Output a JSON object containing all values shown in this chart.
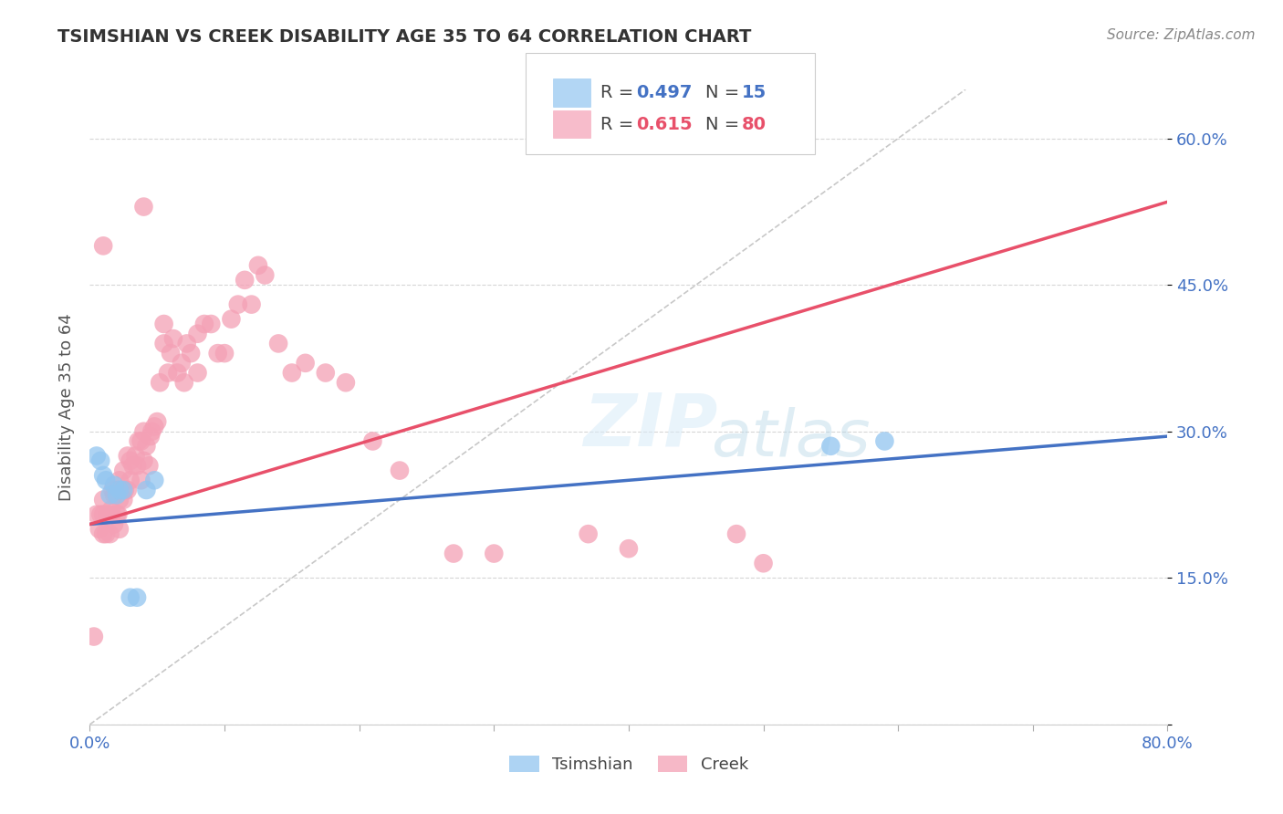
{
  "title": "TSIMSHIAN VS CREEK DISABILITY AGE 35 TO 64 CORRELATION CHART",
  "source": "Source: ZipAtlas.com",
  "ylabel": "Disability Age 35 to 64",
  "x_min": 0.0,
  "x_max": 0.8,
  "y_min": 0.0,
  "y_max": 0.65,
  "y_ticks": [
    0.0,
    0.15,
    0.3,
    0.45,
    0.6
  ],
  "y_tick_labels": [
    "",
    "15.0%",
    "30.0%",
    "45.0%",
    "60.0%"
  ],
  "legend_labels": [
    "Tsimshian",
    "Creek"
  ],
  "tsimshian_R": 0.497,
  "tsimshian_N": 15,
  "creek_R": 0.615,
  "creek_N": 80,
  "tsimshian_color": "#92C5F0",
  "creek_color": "#F4A0B5",
  "tsimshian_line_color": "#4472C4",
  "creek_line_color": "#E8506A",
  "diagonal_color": "#C8C8C8",
  "background_color": "#FFFFFF",
  "grid_color": "#CCCCCC",
  "title_color": "#333333",
  "source_color": "#888888",
  "tsimshian_line_start_y": 0.205,
  "tsimshian_line_end_y": 0.295,
  "creek_line_start_y": 0.205,
  "creek_line_end_y": 0.535,
  "tsimshian_x": [
    0.005,
    0.008,
    0.01,
    0.012,
    0.015,
    0.018,
    0.02,
    0.022,
    0.025,
    0.03,
    0.035,
    0.042,
    0.048,
    0.55,
    0.59
  ],
  "tsimshian_y": [
    0.275,
    0.27,
    0.255,
    0.25,
    0.235,
    0.245,
    0.235,
    0.24,
    0.24,
    0.13,
    0.13,
    0.24,
    0.25,
    0.285,
    0.29
  ],
  "creek_x": [
    0.003,
    0.005,
    0.007,
    0.008,
    0.01,
    0.01,
    0.01,
    0.012,
    0.013,
    0.015,
    0.015,
    0.016,
    0.017,
    0.018,
    0.018,
    0.02,
    0.02,
    0.021,
    0.022,
    0.022,
    0.022,
    0.025,
    0.025,
    0.026,
    0.028,
    0.028,
    0.03,
    0.03,
    0.032,
    0.034,
    0.035,
    0.036,
    0.038,
    0.038,
    0.04,
    0.04,
    0.042,
    0.044,
    0.045,
    0.046,
    0.048,
    0.05,
    0.052,
    0.055,
    0.055,
    0.058,
    0.06,
    0.062,
    0.065,
    0.068,
    0.07,
    0.072,
    0.075,
    0.08,
    0.08,
    0.085,
    0.09,
    0.095,
    0.1,
    0.105,
    0.11,
    0.115,
    0.12,
    0.125,
    0.13,
    0.14,
    0.15,
    0.16,
    0.175,
    0.19,
    0.21,
    0.23,
    0.27,
    0.3,
    0.37,
    0.4,
    0.48,
    0.5,
    0.01,
    0.04
  ],
  "creek_y": [
    0.09,
    0.215,
    0.2,
    0.215,
    0.195,
    0.215,
    0.23,
    0.195,
    0.215,
    0.195,
    0.215,
    0.22,
    0.24,
    0.205,
    0.235,
    0.215,
    0.24,
    0.215,
    0.2,
    0.23,
    0.25,
    0.23,
    0.26,
    0.24,
    0.24,
    0.275,
    0.25,
    0.27,
    0.265,
    0.275,
    0.265,
    0.29,
    0.25,
    0.29,
    0.27,
    0.3,
    0.285,
    0.265,
    0.295,
    0.3,
    0.305,
    0.31,
    0.35,
    0.39,
    0.41,
    0.36,
    0.38,
    0.395,
    0.36,
    0.37,
    0.35,
    0.39,
    0.38,
    0.4,
    0.36,
    0.41,
    0.41,
    0.38,
    0.38,
    0.415,
    0.43,
    0.455,
    0.43,
    0.47,
    0.46,
    0.39,
    0.36,
    0.37,
    0.36,
    0.35,
    0.29,
    0.26,
    0.175,
    0.175,
    0.195,
    0.18,
    0.195,
    0.165,
    0.49,
    0.53
  ]
}
